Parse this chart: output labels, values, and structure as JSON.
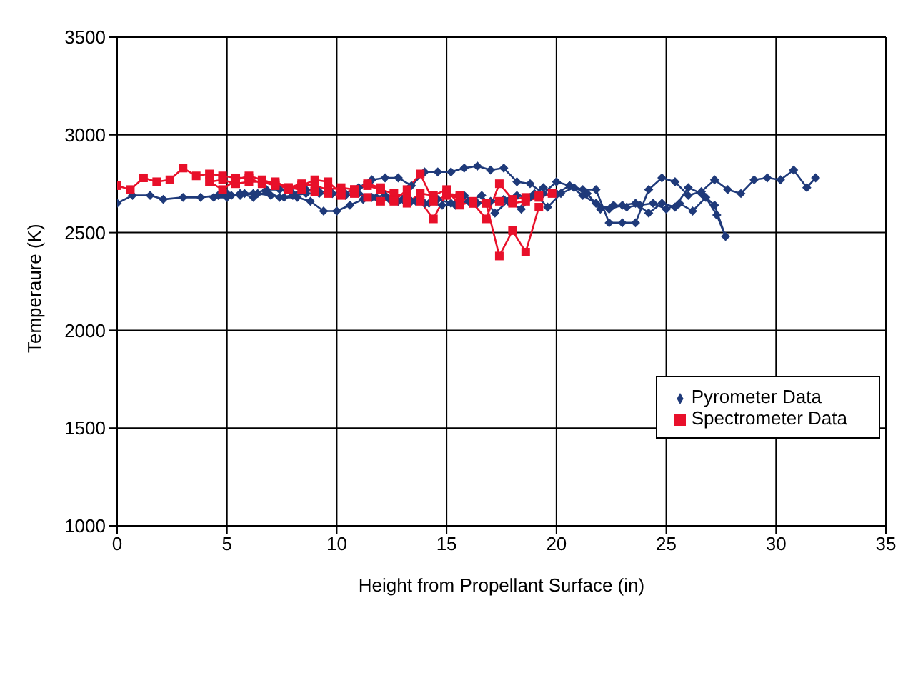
{
  "chart_data": {
    "type": "line",
    "xlabel": "Height from Propellant Surface (in)",
    "ylabel": "Temperaure (K)",
    "xlim": [
      0,
      35
    ],
    "xticks": [
      0,
      5,
      10,
      15,
      20,
      25,
      30,
      35
    ],
    "ylim": [
      1000,
      3500
    ],
    "yticks": [
      1000,
      1500,
      2000,
      2500,
      3000,
      3500
    ],
    "grid": true,
    "legend": "right",
    "line_style": "solid",
    "series": [
      {
        "name": "Pyrometer Data",
        "color": "#1f3a7a",
        "marker": "diamond",
        "x": [
          0,
          0.7,
          1.5,
          2.1,
          3,
          3.8,
          4.6,
          5.2,
          5.8,
          6.4,
          7,
          7.6,
          8.2,
          8.8,
          9.4,
          10,
          10.6,
          11.2,
          11.8,
          12.4,
          13,
          13.6,
          14.2,
          14.8,
          15.4,
          16,
          16.6,
          17.2,
          17.8,
          18.4,
          19,
          19.6,
          20.2,
          20.8,
          21.4,
          22,
          22.6,
          23.2,
          23.8,
          24.4,
          25,
          25.6,
          26.2,
          26.8,
          27.3,
          27.7,
          27.2,
          26.6,
          26,
          25.4,
          24.8,
          24.2,
          23.6,
          23,
          22.4,
          21.8,
          21.2,
          20.6,
          20,
          19.4,
          18.8,
          18.2,
          17.6,
          17,
          16.4,
          15.8,
          15.2,
          14.6,
          14,
          13.4,
          12.8,
          12.2,
          11.6,
          11,
          10.4,
          9.8,
          9.2,
          8.6,
          8,
          7.4,
          6.8,
          6.2,
          5.6,
          5,
          4.4,
          5,
          5.6,
          6.2,
          6.8,
          7.4,
          8,
          8.6,
          9.2,
          9.8,
          10.4,
          11,
          11.6,
          12.2,
          12.8,
          13.4,
          14,
          14.6,
          15.2,
          15.8,
          16.4,
          17,
          17.6,
          18.2,
          18.8,
          19.4,
          20,
          20.6,
          21.2,
          21.8,
          22.4,
          23,
          23.6,
          24.2,
          24.8,
          25.4,
          26,
          26.6,
          27.2,
          27.8,
          28.4,
          29,
          29.6,
          30.2,
          30.8,
          31.4,
          31.8
        ],
        "values": [
          2650,
          2690,
          2690,
          2670,
          2680,
          2680,
          2690,
          2690,
          2700,
          2700,
          2690,
          2680,
          2680,
          2660,
          2610,
          2610,
          2640,
          2670,
          2680,
          2670,
          2670,
          2660,
          2650,
          2640,
          2640,
          2660,
          2690,
          2600,
          2660,
          2620,
          2700,
          2630,
          2700,
          2730,
          2700,
          2620,
          2640,
          2630,
          2640,
          2650,
          2620,
          2650,
          2610,
          2680,
          2590,
          2480,
          2640,
          2700,
          2730,
          2630,
          2650,
          2600,
          2650,
          2640,
          2620,
          2650,
          2690,
          2740,
          2700,
          2730,
          2680,
          2690,
          2670,
          2660,
          2650,
          2690,
          2650,
          2670,
          2650,
          2660,
          2660,
          2690,
          2680,
          2700,
          2690,
          2700,
          2710,
          2720,
          2700,
          2720,
          2720,
          2700,
          2690,
          2700,
          2680,
          2680,
          2700,
          2680,
          2710,
          2680,
          2690,
          2700,
          2700,
          2700,
          2700,
          2730,
          2770,
          2780,
          2780,
          2740,
          2810,
          2810,
          2810,
          2830,
          2840,
          2820,
          2830,
          2760,
          2750,
          2700,
          2760,
          2740,
          2720,
          2720,
          2550,
          2550,
          2550,
          2720,
          2780,
          2760,
          2690,
          2710,
          2770,
          2720,
          2700,
          2770,
          2780,
          2770,
          2820,
          2730,
          2780
        ]
      },
      {
        "name": "Spectrometer Data",
        "color": "#e8102a",
        "marker": "square",
        "x": [
          0,
          0.6,
          1.2,
          1.8,
          2.4,
          3,
          3.6,
          4.2,
          4.8,
          5.4,
          6,
          6.6,
          7.2,
          7.8,
          8.4,
          9,
          9.6,
          10.2,
          10.8,
          11.4,
          12,
          12.6,
          13.2,
          13.8,
          14.4,
          15,
          15.6,
          16.2,
          16.8,
          17.4,
          18,
          18.6,
          19.2,
          19.8,
          19.2,
          18.6,
          18,
          17.4,
          16.8,
          16.2,
          15.6,
          15,
          14.4,
          13.8,
          13.2,
          12.6,
          12,
          11.4,
          10.8,
          10.2,
          9.6,
          9,
          8.4,
          7.8,
          7.2,
          6.6,
          6,
          5.4,
          4.8,
          4.2,
          4.8,
          5.4,
          6,
          6.6,
          7.2,
          7.8,
          8.4,
          9,
          9.6,
          10.2,
          10.8,
          11.4,
          12,
          12.6,
          13.2,
          13.8,
          14.4,
          15,
          15.6,
          16.2,
          16.8,
          17.4,
          18,
          18.6,
          19.2
        ],
        "values": [
          2740,
          2720,
          2780,
          2760,
          2770,
          2830,
          2790,
          2800,
          2790,
          2780,
          2780,
          2750,
          2760,
          2730,
          2750,
          2740,
          2720,
          2730,
          2720,
          2740,
          2720,
          2700,
          2680,
          2660,
          2570,
          2700,
          2690,
          2650,
          2570,
          2750,
          2670,
          2680,
          2690,
          2700,
          2680,
          2660,
          2650,
          2660,
          2650,
          2660,
          2640,
          2720,
          2690,
          2700,
          2650,
          2670,
          2660,
          2680,
          2700,
          2690,
          2700,
          2710,
          2720,
          2730,
          2740,
          2760,
          2760,
          2750,
          2770,
          2760,
          2720,
          2770,
          2790,
          2770,
          2750,
          2720,
          2740,
          2770,
          2760,
          2700,
          2720,
          2750,
          2730,
          2660,
          2720,
          2800,
          2660,
          2690,
          2680,
          2650,
          2650,
          2380,
          2510,
          2400,
          2630
        ]
      }
    ]
  }
}
